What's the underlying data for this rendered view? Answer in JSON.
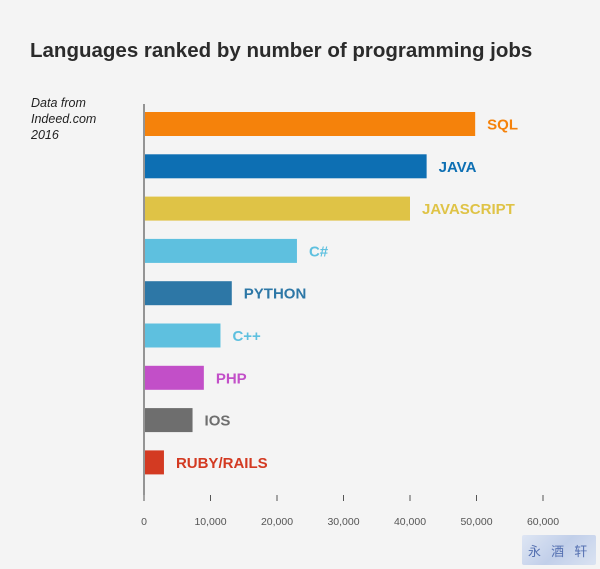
{
  "chart_data": {
    "type": "bar",
    "orientation": "horizontal",
    "title": "Languages ranked by number of programming jobs",
    "source_note": [
      "Data from",
      "Indeed.com",
      "2016"
    ],
    "categories": [
      "SQL",
      "JAVA",
      "JAVASCRIPT",
      "C#",
      "PYTHON",
      "C++",
      "PHP",
      "IOS",
      "RUBY/RAILS"
    ],
    "values": [
      49800,
      42500,
      40000,
      23000,
      13200,
      11500,
      9000,
      7300,
      3000
    ],
    "colors": [
      "#f5820b",
      "#0d6fb3",
      "#dfc346",
      "#5ec0df",
      "#2d77a6",
      "#5ec0df",
      "#c24fc8",
      "#6e6e6e",
      "#d33a22"
    ],
    "xlim": [
      0,
      60000
    ],
    "xticks": [
      0,
      10000,
      20000,
      30000,
      40000,
      50000,
      60000
    ],
    "xtick_labels": [
      "0",
      "10,000",
      "20,000",
      "30,000",
      "40,000",
      "50,000",
      "60,000"
    ],
    "grid": false,
    "xlabel": "",
    "ylabel": ""
  }
}
